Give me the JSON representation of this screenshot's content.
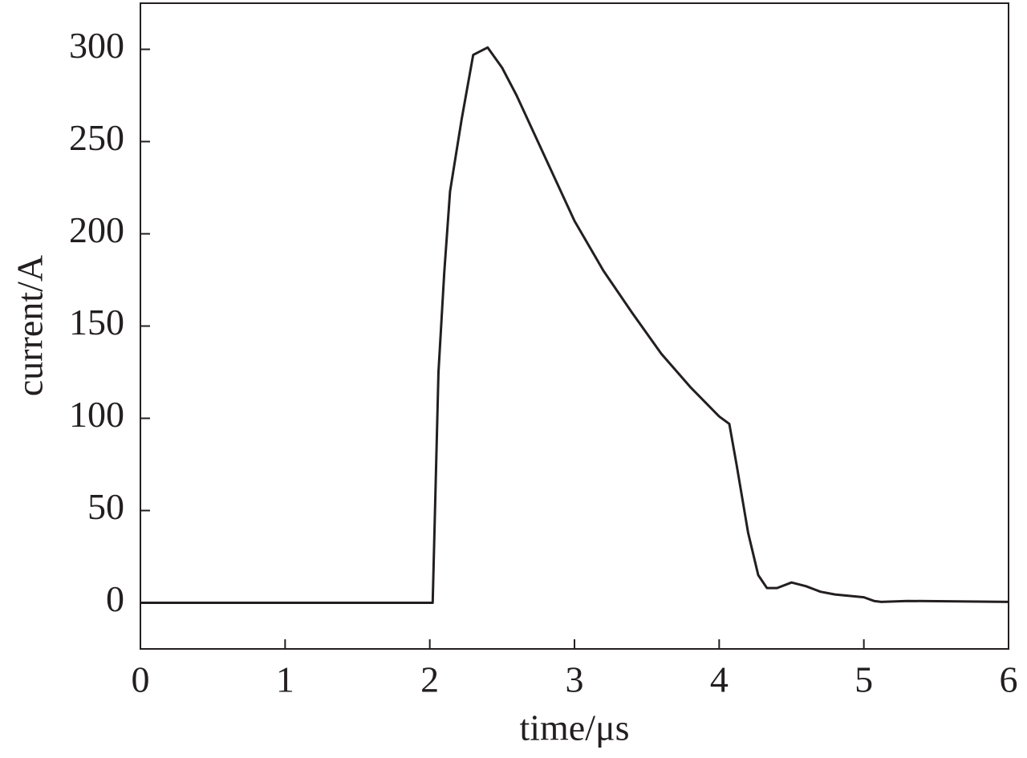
{
  "chart_data": {
    "type": "line",
    "x_label": "time/μs",
    "y_label": "current/A",
    "x": [
      0,
      2.0,
      2.02,
      2.06,
      2.1,
      2.14,
      2.22,
      2.3,
      2.4,
      2.5,
      2.6,
      2.8,
      3.0,
      3.2,
      3.4,
      3.6,
      3.8,
      4.0,
      4.07,
      4.12,
      4.2,
      4.27,
      4.33,
      4.4,
      4.5,
      4.6,
      4.7,
      4.8,
      5.0,
      5.07,
      5.12,
      5.3,
      6.0
    ],
    "series": [
      {
        "color": "#231f20",
        "values": [
          0,
          0,
          0,
          125,
          179,
          223,
          262,
          297,
          301,
          290,
          275,
          241,
          207,
          180,
          157,
          135,
          117,
          101,
          97,
          75,
          38,
          15,
          8,
          8,
          11,
          9,
          6,
          4.5,
          3,
          1,
          0.5,
          1,
          0.5
        ]
      }
    ],
    "xlim": [
      0,
      6
    ],
    "xticks": [
      0,
      1,
      2,
      3,
      4,
      5,
      6
    ],
    "ylim": [
      -25,
      325
    ],
    "yticks": [
      0,
      50,
      100,
      150,
      200,
      250,
      300
    ]
  }
}
